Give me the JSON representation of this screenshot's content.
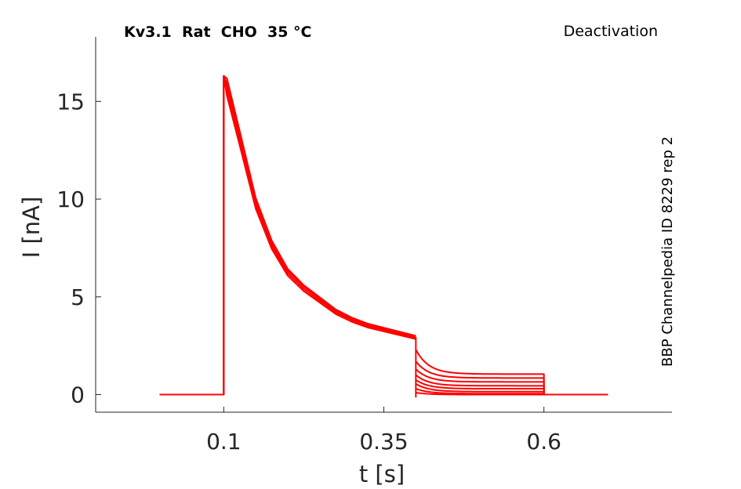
{
  "chart_data": {
    "type": "line",
    "title": "Kv3.1  Rat  CHO  35 °C",
    "protocol_label": "Deactivation",
    "side_label": "BBP Channelpedia ID 8229 rep 2",
    "xlabel": "t [s]",
    "ylabel": "I [nA]",
    "xlim": [
      -0.1,
      0.8
    ],
    "ylim": [
      -0.9,
      18.3
    ],
    "xticks": [
      0.1,
      0.35,
      0.6
    ],
    "xtick_labels": [
      "0.1",
      "0.35",
      "0.6"
    ],
    "yticks": [
      0,
      5,
      10,
      15
    ],
    "ytick_labels": [
      "0",
      "5",
      "10",
      "15"
    ],
    "grid": false,
    "legend": "none",
    "series_color": "#ff0000",
    "phases": {
      "baseline_start_s": 0.0,
      "step_on_s": 0.1,
      "step_off_s": 0.4,
      "tail_end_s": 0.6,
      "trace_end_s": 0.7
    },
    "activation": {
      "peak_nA": 16.3,
      "decay_curve_nA": [
        [
          0.1,
          16.3
        ],
        [
          0.105,
          15.6
        ],
        [
          0.125,
          13.0
        ],
        [
          0.15,
          9.7
        ],
        [
          0.175,
          7.6
        ],
        [
          0.2,
          6.2
        ],
        [
          0.225,
          5.4
        ],
        [
          0.25,
          4.8
        ],
        [
          0.275,
          4.2
        ],
        [
          0.3,
          3.8
        ],
        [
          0.325,
          3.5
        ],
        [
          0.35,
          3.3
        ],
        [
          0.375,
          3.1
        ],
        [
          0.4,
          2.9
        ]
      ]
    },
    "tail_series": [
      {
        "initial_nA": 2.3,
        "steady_nA": 1.05
      },
      {
        "initial_nA": 1.7,
        "steady_nA": 0.85
      },
      {
        "initial_nA": 1.3,
        "steady_nA": 0.65
      },
      {
        "initial_nA": 1.0,
        "steady_nA": 0.45
      },
      {
        "initial_nA": 0.75,
        "steady_nA": 0.3
      },
      {
        "initial_nA": 0.55,
        "steady_nA": 0.15
      },
      {
        "initial_nA": 0.3,
        "steady_nA": 0.05
      },
      {
        "initial_nA": 0.1,
        "steady_nA": 0.0
      }
    ]
  }
}
